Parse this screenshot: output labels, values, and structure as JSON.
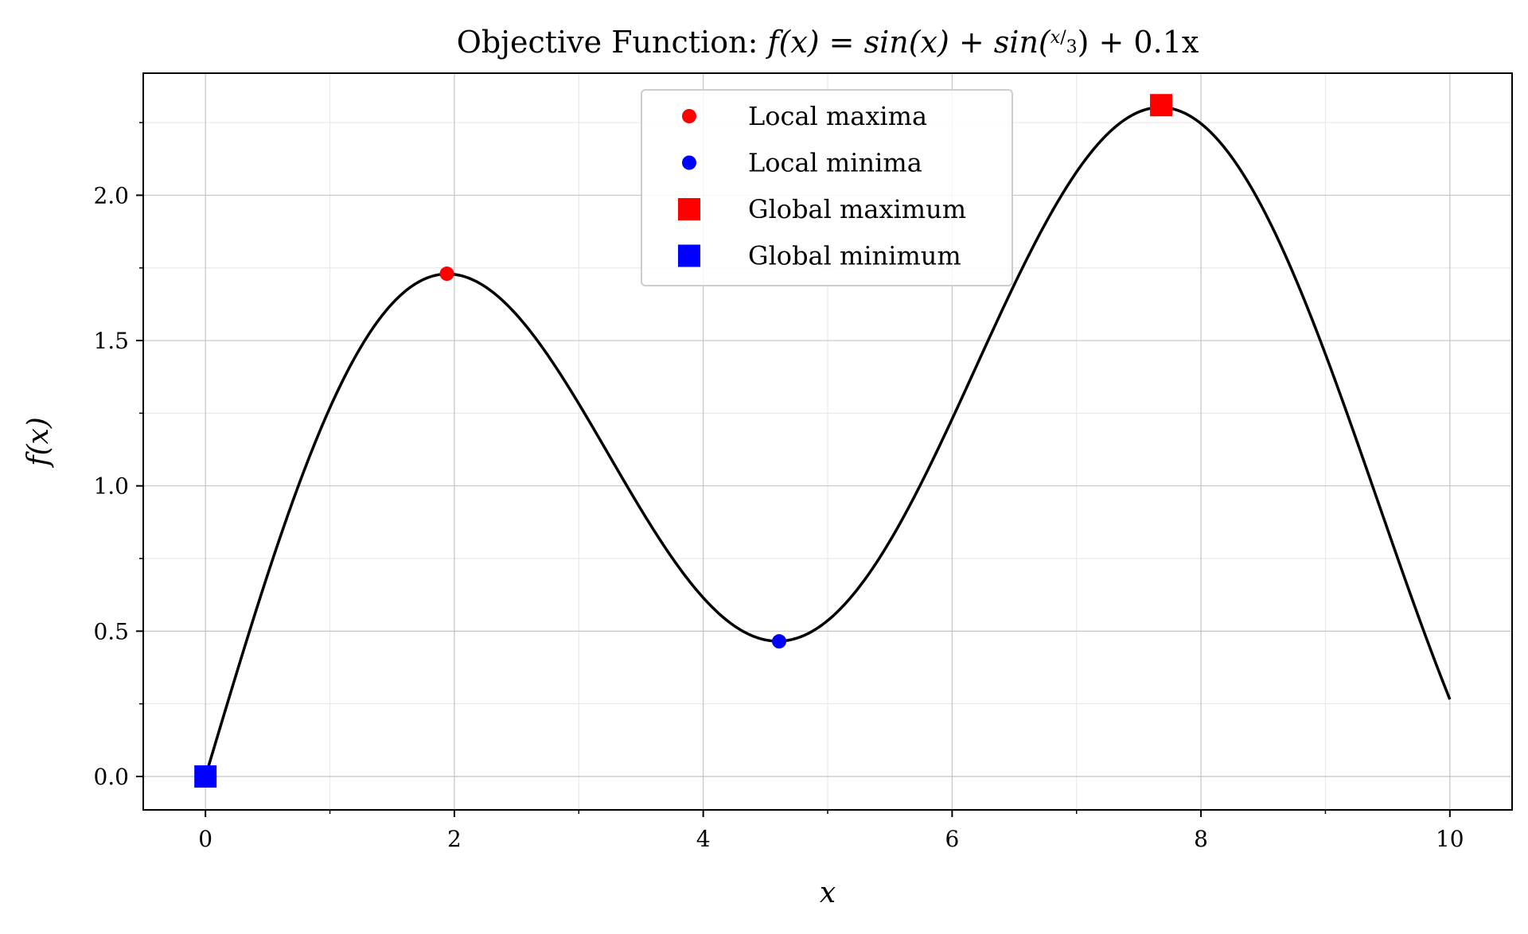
{
  "chart_data": {
    "type": "line",
    "title": {
      "prefix": "Objective Function: ",
      "fx": "f(x) = sin(x) + sin(",
      "frac_num": "x",
      "frac_den": "3",
      "tail": ") + 0.1x"
    },
    "xlabel": "x",
    "ylabel": "f(x)",
    "xlim": [
      -0.5,
      10.5
    ],
    "ylim": [
      -0.115,
      2.42
    ],
    "x_ticks": [
      0,
      2,
      4,
      6,
      8,
      10
    ],
    "x_tick_labels": [
      "0",
      "2",
      "4",
      "6",
      "8",
      "10"
    ],
    "x_minor_ticks": [
      1,
      3,
      5,
      7,
      9
    ],
    "y_ticks": [
      0.0,
      0.5,
      1.0,
      1.5,
      2.0
    ],
    "y_tick_labels": [
      "0.0",
      "0.5",
      "1.0",
      "1.5",
      "2.0"
    ],
    "y_minor_ticks": [
      0.25,
      0.75,
      1.25,
      1.75,
      2.25
    ],
    "grid": true,
    "legend_position": "top-center",
    "series": [
      {
        "function": "sin(x) + sin(x/3) + 0.1x",
        "x_range": [
          0,
          10
        ],
        "color": "#000000"
      }
    ],
    "markers": [
      {
        "name": "Local maxima",
        "shape": "circle",
        "color": "#ff0000",
        "points": [
          [
            1.94,
            1.73
          ]
        ]
      },
      {
        "name": "Local minima",
        "shape": "circle",
        "color": "#0000ff",
        "points": [
          [
            4.61,
            0.465
          ]
        ]
      },
      {
        "name": "Global maximum",
        "shape": "square",
        "color": "#ff0000",
        "points": [
          [
            7.68,
            2.31
          ]
        ]
      },
      {
        "name": "Global minimum",
        "shape": "square",
        "color": "#0000ff",
        "points": [
          [
            0.0,
            0.0
          ]
        ]
      }
    ]
  }
}
